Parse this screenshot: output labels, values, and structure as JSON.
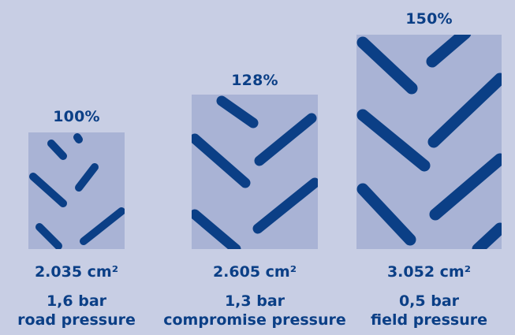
{
  "colors": {
    "background": "#c8cee4",
    "patch": "#a9b3d5",
    "tread": "#0b3f86",
    "text": "#0b3f86"
  },
  "footprints": [
    {
      "percent": "100%",
      "area": "2.035 cm²",
      "pressure": "1,6 bar",
      "label": "road pressure"
    },
    {
      "percent": "128%",
      "area": "2.605 cm²",
      "pressure": "1,3 bar",
      "label": "compromise pressure"
    },
    {
      "percent": "150%",
      "area": "3.052 cm²",
      "pressure": "0,5 bar",
      "label": "field pressure"
    }
  ]
}
